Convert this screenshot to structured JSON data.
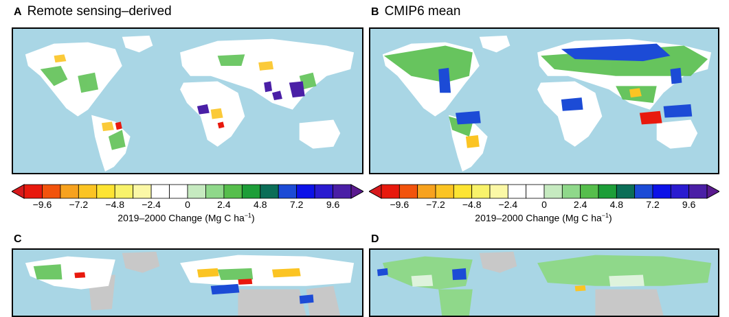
{
  "panels": {
    "a": {
      "letter": "A",
      "title": "Remote sensing–derived"
    },
    "b": {
      "letter": "B",
      "title": "CMIP6 mean"
    },
    "c": {
      "letter": "C",
      "title": ""
    },
    "d": {
      "letter": "D",
      "title": ""
    }
  },
  "colorbar": {
    "ticks": [
      "−9.6",
      "−7.2",
      "−4.8",
      "−2.4",
      "0",
      "2.4",
      "4.8",
      "7.2",
      "9.6"
    ],
    "caption_main": "2019–2000 Change (Mg C ha",
    "caption_sup": "−1",
    "caption_end": ")",
    "colors": [
      "#e8190d",
      "#f2530c",
      "#f7a21e",
      "#fbc423",
      "#fde432",
      "#f8f26a",
      "#fbf8a6",
      "#ffffff",
      "#ffffff",
      "#c6eac0",
      "#8fd88a",
      "#56be4c",
      "#1d9e38",
      "#0b6e57",
      "#1c4bd6",
      "#0c12e8",
      "#2a1bd0",
      "#4a1fa6"
    ],
    "left_cap_color": "#d7191c",
    "right_cap_color": "#5a1a8f"
  },
  "map_colors": {
    "ocean": "#a9d6e5",
    "land": "#ffffff",
    "nodata": "#c8c8c8"
  }
}
